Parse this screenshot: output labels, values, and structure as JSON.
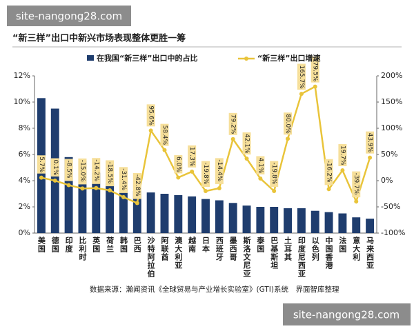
{
  "watermarks": [
    "site-nangong28.com",
    "site-nangong28.com"
  ],
  "chart_data": {
    "type": "bar",
    "title": "“新三样”出口中新兴市场表现整体更胜一筹",
    "source": "数据来源：瀚闻资讯《全球贸易与产业增长实验室》(GTI)系统　界面智库整理",
    "categories": [
      "美国",
      "德国",
      "印度",
      "比利时",
      "英国",
      "荷兰",
      "韩国",
      "巴西",
      "沙特阿拉伯",
      "阿联酋",
      "澳大利亚",
      "越南",
      "日本",
      "西班牙",
      "墨西哥",
      "斯洛文尼亚",
      "泰国",
      "巴基斯坦",
      "土耳其",
      "印度尼西亚",
      "以色列",
      "中国香港",
      "法国",
      "意大利",
      "马来西亚"
    ],
    "series": [
      {
        "name": "在我国“新三样”出口中的占比",
        "type": "bar",
        "color": "#1f3d6e",
        "axis": "y",
        "values": [
          10.3,
          9.5,
          5.8,
          5.5,
          4.6,
          3.8,
          3.4,
          3.2,
          3.1,
          3.0,
          2.9,
          2.8,
          2.6,
          2.5,
          2.3,
          2.1,
          2.0,
          2.0,
          1.9,
          1.9,
          1.7,
          1.6,
          1.5,
          1.2,
          1.1
        ]
      },
      {
        "name": "“新三样”出口增速",
        "type": "line",
        "color": "#e9c43a",
        "axis": "y2",
        "values": [
          5.7,
          0.1,
          -8.5,
          -15.0,
          -14.2,
          -18.5,
          -31.4,
          -42.8,
          95.6,
          58.4,
          6.0,
          17.3,
          -19.8,
          -14.4,
          79.2,
          42.1,
          4.1,
          -19.8,
          80.0,
          165.7,
          179.5,
          -16.2,
          19.7,
          -39.7,
          43.9
        ],
        "value_labels": [
          "5.7%",
          "0.1%",
          "-8.5%",
          "-15.0%",
          "-14.2%",
          "-18.5%",
          "-31.4%",
          "-42.8%",
          "95.6%",
          "58.4%",
          "6.0%",
          "17.3%",
          "-19.8%",
          "-14.4%",
          "79.2%",
          "42.1%",
          "4.1%",
          "-19.8%",
          "80.0%",
          "165.7%",
          "179.5%",
          "-16.2%",
          "19.7%",
          "-39.7%",
          "43.9%"
        ]
      }
    ],
    "ylim": [
      0,
      12
    ],
    "yticks": [
      {
        "value": 0,
        "label": "0%"
      },
      {
        "value": 2,
        "label": "2%"
      },
      {
        "value": 4,
        "label": "4%"
      },
      {
        "value": 6,
        "label": "6%"
      },
      {
        "value": 8,
        "label": "8%"
      },
      {
        "value": 10,
        "label": "10%"
      },
      {
        "value": 12,
        "label": "12%"
      }
    ],
    "y2lim": [
      -100,
      200
    ],
    "y2ticks": [
      {
        "value": -100,
        "label": "-100%"
      },
      {
        "value": -50,
        "label": "-50%"
      },
      {
        "value": 0,
        "label": "0%"
      },
      {
        "value": 50,
        "label": "50%"
      },
      {
        "value": 100,
        "label": "100%"
      },
      {
        "value": 150,
        "label": "150%"
      },
      {
        "value": 200,
        "label": "200%"
      }
    ]
  }
}
